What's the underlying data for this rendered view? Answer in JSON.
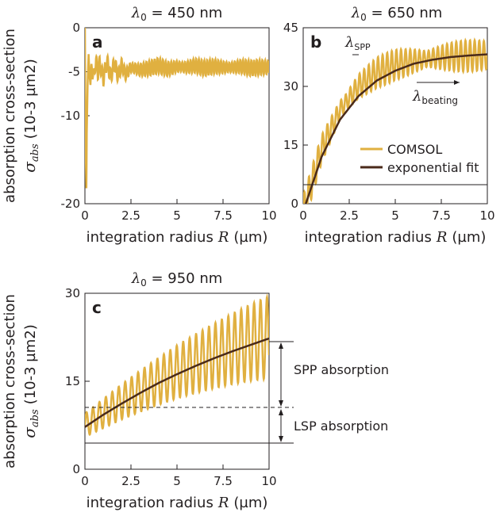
{
  "chart_data": [
    {
      "panel": "a",
      "type": "line",
      "title_lambda": "λ",
      "title_sub": "0",
      "title_rest": " = 450 nm",
      "xlabel": "integration radius",
      "xvar": "R",
      "xunit": "(µm)",
      "ylabel_line1": "absorption cross-section",
      "ylabel_symbol": "σ",
      "ylabel_sub": "abs",
      "ylabel_unit": "(10-3 µm2)",
      "xlim": [
        0,
        10
      ],
      "ylim": [
        -20,
        0
      ],
      "xticks": [
        "0",
        "2.5",
        "5",
        "7.5",
        "10"
      ],
      "yticks": [
        "0",
        "-5",
        "-10",
        "-20"
      ],
      "ytick_values": [
        0,
        -5,
        -10,
        -20
      ],
      "series": [
        {
          "name": "COMSOL",
          "color": "#e0b040",
          "x": [
            0,
            0.02,
            0.05,
            0.08,
            0.1,
            0.15,
            0.2,
            0.25,
            0.3,
            0.35,
            0.4,
            0.5,
            0.6,
            0.7,
            0.8,
            1.0,
            1.2,
            1.4,
            1.6,
            1.8,
            2.0,
            2.2,
            2.5,
            3,
            3.5,
            4,
            4.5,
            5,
            5.5,
            6,
            6.5,
            7,
            7.5,
            8,
            8.5,
            9,
            9.5,
            10
          ],
          "y": [
            0,
            -8,
            -15,
            -18.5,
            -12,
            -6,
            -3,
            -5.5,
            -6.5,
            -4,
            -5,
            -5.5,
            -3.5,
            -5.2,
            -4,
            -5.8,
            -3.8,
            -5.6,
            -4,
            -5.5,
            -4.2,
            -5.3,
            -4.5,
            -4.8,
            -4.6,
            -4.3,
            -4.7,
            -4.4,
            -4.5,
            -4.3,
            -4.6,
            -4.4,
            -4.5,
            -4.5,
            -4.4,
            -4.6,
            -4.5,
            -4.5
          ],
          "oscillation": {
            "period_um": 0.15,
            "amplitude": 0.9
          }
        }
      ]
    },
    {
      "panel": "b",
      "type": "line",
      "title_lambda": "λ",
      "title_sub": "0",
      "title_rest": " = 650 nm",
      "xlabel": "integration radius",
      "xvar": "R",
      "xunit": "(µm)",
      "xlim": [
        0,
        10
      ],
      "ylim": [
        0,
        45
      ],
      "xticks": [
        "0",
        "2.5",
        "5",
        "7.5",
        "10"
      ],
      "yticks": [
        "45",
        "30",
        "15",
        "0"
      ],
      "ytick_values": [
        45,
        30,
        15,
        0
      ],
      "annotations": {
        "lambda_spp": "λ",
        "lambda_spp_sub": "SPP",
        "lambda_beating": "λ",
        "lambda_beating_sub": "beating"
      },
      "legend": [
        "COMSOL",
        "exponential fit"
      ],
      "legend_position": "right",
      "series": [
        {
          "name": "COMSOL",
          "color": "#e0b040",
          "x": [
            0,
            1,
            2,
            3,
            4,
            5,
            6,
            7,
            8,
            9,
            10
          ],
          "y": [
            -2,
            14,
            24,
            30,
            33.5,
            35.5,
            36.5,
            37.2,
            37.6,
            37.8,
            38
          ],
          "oscillation": {
            "period_um": 0.25,
            "amplitude": 4
          }
        },
        {
          "name": "exponential fit",
          "color": "#4a2a1a",
          "x": [
            0,
            1,
            2,
            3,
            4,
            5,
            6,
            7,
            8,
            9,
            10
          ],
          "y": [
            -2,
            12,
            21.5,
            27.5,
            31.5,
            34,
            35.8,
            36.8,
            37.5,
            37.9,
            38.2
          ]
        }
      ]
    },
    {
      "panel": "c",
      "type": "line",
      "title_lambda": "λ",
      "title_sub": "0",
      "title_rest": " = 950 nm",
      "xlabel": "integration radius",
      "xvar": "R",
      "xunit": "(µm)",
      "ylabel_line1": "absorption cross-section",
      "ylabel_symbol": "σ",
      "ylabel_sub": "abs",
      "ylabel_unit": "(10-3 µm2)",
      "xlim": [
        0,
        10
      ],
      "ylim": [
        0,
        30
      ],
      "xticks": [
        "0",
        "2.5",
        "5",
        "7.5",
        "10"
      ],
      "yticks": [
        "30",
        "15",
        "0"
      ],
      "ytick_values": [
        30,
        15,
        0
      ],
      "dashed_level": 7.5,
      "annotations": {
        "spp_absorption": "SPP absorption",
        "lsp_absorption": "LSP absorption"
      },
      "series": [
        {
          "name": "COMSOL",
          "color": "#e0b040",
          "x": [
            0,
            1,
            2,
            3,
            4,
            5,
            6,
            7,
            8,
            9,
            10
          ],
          "y": [
            7.5,
            9.5,
            11.5,
            13.3,
            15,
            16.6,
            18,
            19.3,
            20.5,
            21.6,
            22.5
          ],
          "oscillation": {
            "period_um": 0.35,
            "amplitude_start": 2,
            "amplitude_end": 7
          }
        },
        {
          "name": "exponential fit",
          "color": "#4a2a1a",
          "x": [
            0,
            1,
            2,
            3,
            4,
            5,
            6,
            7,
            8,
            9,
            10
          ],
          "y": [
            7.2,
            9.3,
            11.2,
            13,
            14.7,
            16.2,
            17.6,
            18.9,
            20.1,
            21.2,
            22.3
          ]
        }
      ]
    }
  ]
}
